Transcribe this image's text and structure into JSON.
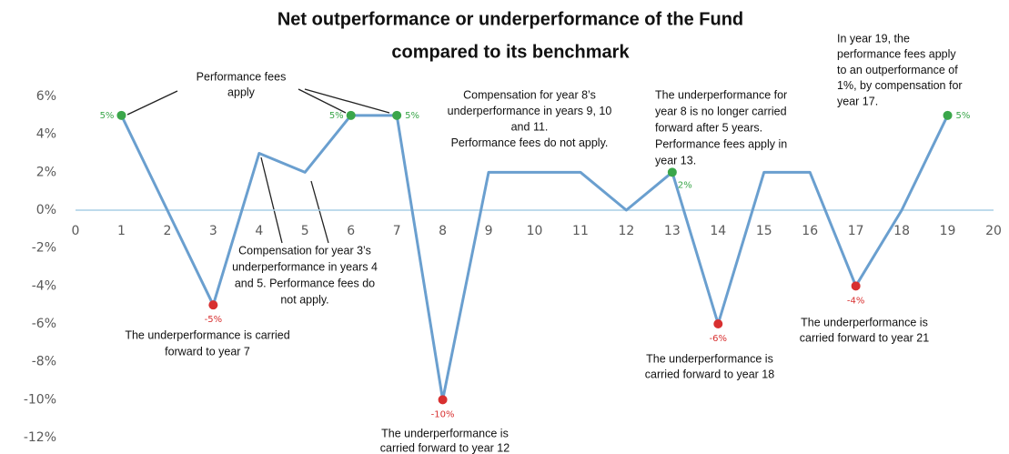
{
  "chart_data": {
    "type": "line",
    "title": [
      "Net outperformance or underperformance of the Fund",
      "compared to its benchmark"
    ],
    "x": [
      1,
      2,
      3,
      4,
      5,
      6,
      7,
      8,
      9,
      10,
      11,
      12,
      13,
      14,
      15,
      16,
      17,
      18,
      19
    ],
    "series": [
      {
        "color": "#6a9fcf",
        "values": [
          5,
          0,
          -5,
          3,
          2,
          5,
          5,
          -10,
          2,
          2,
          2,
          0,
          2,
          -6,
          2,
          2,
          -4,
          0,
          5
        ],
        "value_labels": [
          "5%",
          null,
          "-5%",
          null,
          null,
          "5%",
          "5%",
          "-10%",
          null,
          null,
          null,
          null,
          "2%",
          "-6%",
          null,
          null,
          "-4%",
          null,
          "5%"
        ],
        "point_colors": [
          "#3aa64a",
          null,
          "#d83030",
          null,
          null,
          "#3aa64a",
          "#3aa64a",
          "#d83030",
          null,
          null,
          null,
          null,
          "#3aa64a",
          "#d83030",
          null,
          null,
          "#d83030",
          null,
          "#3aa64a"
        ]
      }
    ],
    "xlim": [
      0,
      20
    ],
    "xticks": [
      0,
      1,
      2,
      3,
      4,
      5,
      6,
      7,
      8,
      9,
      10,
      11,
      12,
      13,
      14,
      15,
      16,
      17,
      18,
      19,
      20
    ],
    "ylim": [
      -12,
      6
    ],
    "yticks": [
      {
        "value": -12,
        "label": "-12%"
      },
      {
        "value": -10,
        "label": "-10%"
      },
      {
        "value": -8,
        "label": "-8%"
      },
      {
        "value": -6,
        "label": "-6%"
      },
      {
        "value": -4,
        "label": "-4%"
      },
      {
        "value": -2,
        "label": "-2%"
      },
      {
        "value": 0,
        "label": "0%"
      },
      {
        "value": 2,
        "label": "2%"
      },
      {
        "value": 4,
        "label": "4%"
      },
      {
        "value": 6,
        "label": "6%"
      }
    ],
    "annotations": [
      [
        "Performance fees",
        "apply"
      ],
      [
        "Compensation for year 8’s",
        "underperformance in years 9, 10",
        "and 11.",
        "Performance fees do not apply."
      ],
      [
        "The underperformance for",
        "year 8 is no longer carried",
        "forward after 5 years.",
        "Performance fees apply in",
        "year 13."
      ],
      [
        "In year 19, the",
        "performance fees apply",
        "to an outperformance of",
        "1%, by compensation for",
        "year 17."
      ],
      [
        "Compensation for year 3’s",
        "underperformance in years 4",
        "and 5. Performance fees do",
        "not apply."
      ],
      [
        "The underperformance is carried",
        "forward to year 7"
      ],
      [
        "The underperformance is",
        "carried forward to year 12"
      ],
      [
        "The underperformance is",
        "carried forward to year 18"
      ],
      [
        "The underperformance is",
        "carried forward to year 21"
      ]
    ]
  }
}
